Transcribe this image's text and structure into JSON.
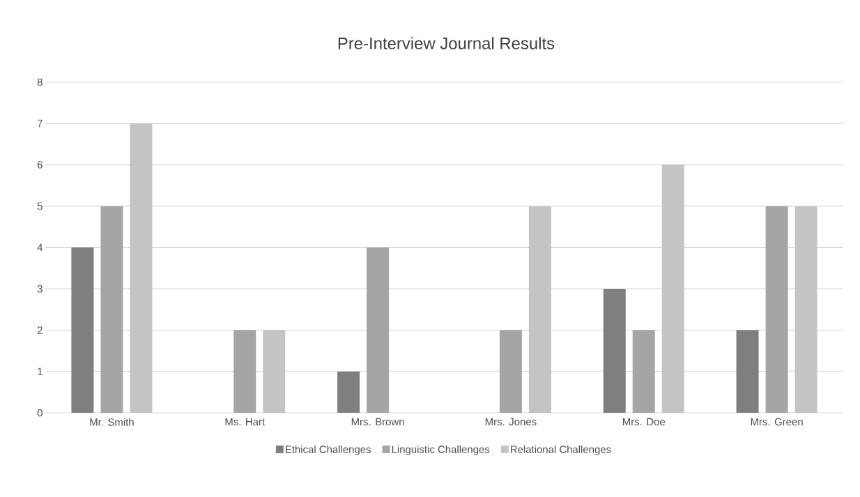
{
  "chart_data": {
    "type": "bar",
    "title": "Pre-Interview Journal Results",
    "categories": [
      "Mr. Smith",
      "Ms. Hart",
      "Mrs. Brown",
      "Mrs. Jones",
      "Mrs. Doe",
      "Mrs. Green"
    ],
    "series": [
      {
        "name": "Ethical Challenges",
        "color": "#7f7f7f",
        "values": [
          4,
          0,
          1,
          0,
          3,
          2
        ]
      },
      {
        "name": "Linguistic Challenges",
        "color": "#a5a5a5",
        "values": [
          5,
          2,
          4,
          2,
          2,
          5
        ]
      },
      {
        "name": "Relational Challenges",
        "color": "#c4c4c4",
        "values": [
          7,
          2,
          0,
          5,
          6,
          5
        ]
      }
    ],
    "ylim": [
      0,
      8
    ],
    "yticks": [
      0,
      1,
      2,
      3,
      4,
      5,
      6,
      7,
      8
    ],
    "grid": "y",
    "legend": "bottom"
  }
}
